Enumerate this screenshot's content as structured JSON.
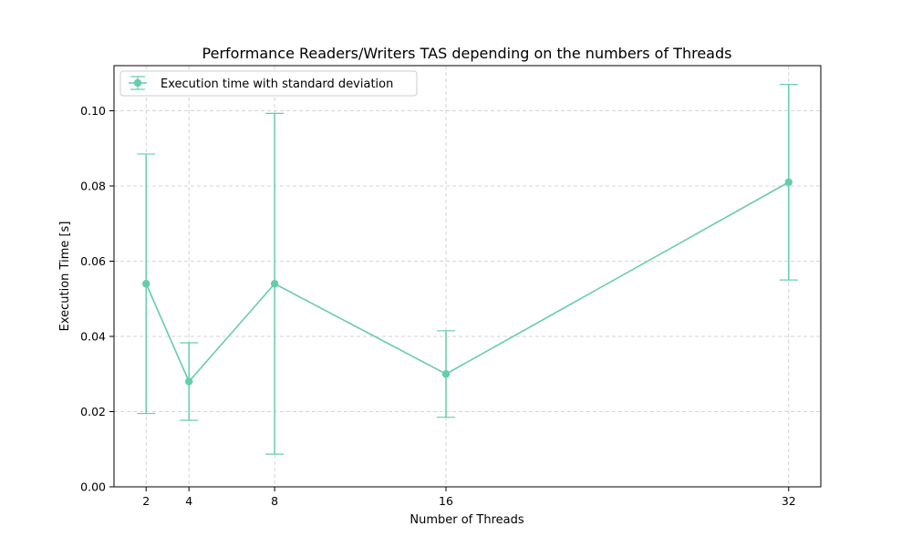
{
  "chart_data": {
    "type": "line",
    "title": "Performance Readers/Writers TAS depending on the numbers of Threads",
    "xlabel": "Number of Threads",
    "ylabel": "Execution Time [s]",
    "x": [
      2,
      4,
      8,
      16,
      32
    ],
    "x_ticks": [
      "2",
      "4",
      "8",
      "16",
      "32"
    ],
    "y_ticks": [
      "0.00",
      "0.02",
      "0.04",
      "0.06",
      "0.08",
      "0.10"
    ],
    "xlim": [
      0.5,
      33.5
    ],
    "ylim": [
      0,
      0.112
    ],
    "grid": true,
    "legend_position": "top-left",
    "series": [
      {
        "name": "Execution time with standard deviation",
        "color": "#66cdaa",
        "values": [
          0.054,
          0.028,
          0.054,
          0.03,
          0.081
        ],
        "error": [
          0.0345,
          0.0103,
          0.0453,
          0.0115,
          0.026
        ]
      }
    ]
  }
}
